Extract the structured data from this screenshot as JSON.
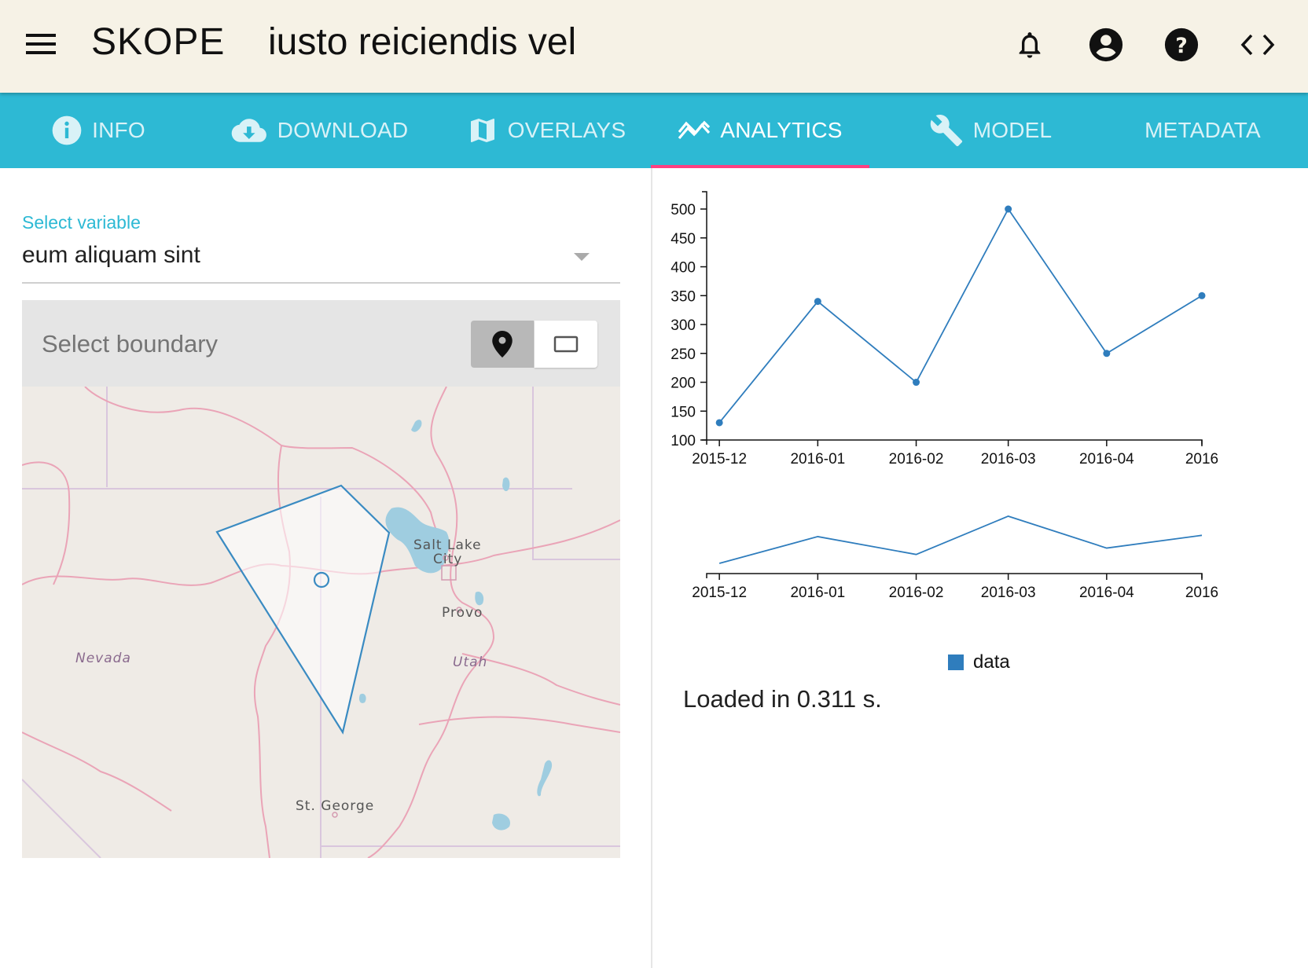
{
  "app": {
    "brand": "SKOPE",
    "dataset_title": "iusto reiciendis vel"
  },
  "header_icons": [
    "bell-icon",
    "account-icon",
    "help-icon",
    "code-icon"
  ],
  "tabs": [
    {
      "label": "INFO",
      "icon": "info-icon",
      "active": false
    },
    {
      "label": "DOWNLOAD",
      "icon": "cloud-download-icon",
      "active": false
    },
    {
      "label": "OVERLAYS",
      "icon": "map-icon",
      "active": false
    },
    {
      "label": "ANALYTICS",
      "icon": "trending-icon",
      "active": true
    },
    {
      "label": "MODEL",
      "icon": "wrench-icon",
      "active": false
    },
    {
      "label": "METADATA",
      "icon": "",
      "active": false
    }
  ],
  "colors": {
    "appbar_bg": "#f6f2e6",
    "tab_bg": "#2db9d4",
    "tab_indicator": "#ff4081",
    "accent": "#2db9d4",
    "series": "#2f7dbd"
  },
  "variable_select": {
    "label": "Select variable",
    "value": "eum aliquam sint"
  },
  "boundary": {
    "label": "Select boundary",
    "tools": [
      "marker-icon",
      "rectangle-icon"
    ],
    "active_tool": "marker-icon"
  },
  "map": {
    "labels": [
      "Salt Lake",
      "City",
      "Provo",
      "Utah",
      "Nevada",
      "St. George"
    ]
  },
  "chart_data": [
    {
      "type": "line",
      "x": [
        "2015-12",
        "2016-01",
        "2016-02",
        "2016-03",
        "2016-04",
        "2016"
      ],
      "x_dates": [
        "2015-12-01",
        "2016-01-01",
        "2016-02-01",
        "2016-03-01",
        "2016-04-01",
        "2016-05-01"
      ],
      "series": [
        {
          "name": "data",
          "x": [
            "2015-12-01",
            "2016-01-01",
            "2016-02-01",
            "2016-03-01",
            "2016-04-01",
            "2016-05-01"
          ],
          "values": [
            130,
            340,
            200,
            500,
            250,
            350
          ]
        }
      ],
      "y_ticks": [
        100,
        150,
        200,
        250,
        300,
        350,
        400,
        450,
        500
      ],
      "ylim": [
        100,
        530
      ],
      "points_visible": true,
      "grid": false
    },
    {
      "type": "line",
      "x": [
        "2015-12",
        "2016-01",
        "2016-02",
        "2016-03",
        "2016-04",
        "2016"
      ],
      "series": [
        {
          "name": "data",
          "x": [
            "2015-12-01",
            "2016-01-01",
            "2016-02-01",
            "2016-03-01",
            "2016-04-01",
            "2016-05-01"
          ],
          "values": [
            130,
            340,
            200,
            500,
            250,
            350
          ]
        }
      ],
      "ylim": [
        50,
        580
      ],
      "y_axis_visible": false,
      "grid": false
    }
  ],
  "legend": {
    "label": "data",
    "placement": "bottom-center"
  },
  "status": {
    "loaded_text": "Loaded in 0.311 s."
  }
}
